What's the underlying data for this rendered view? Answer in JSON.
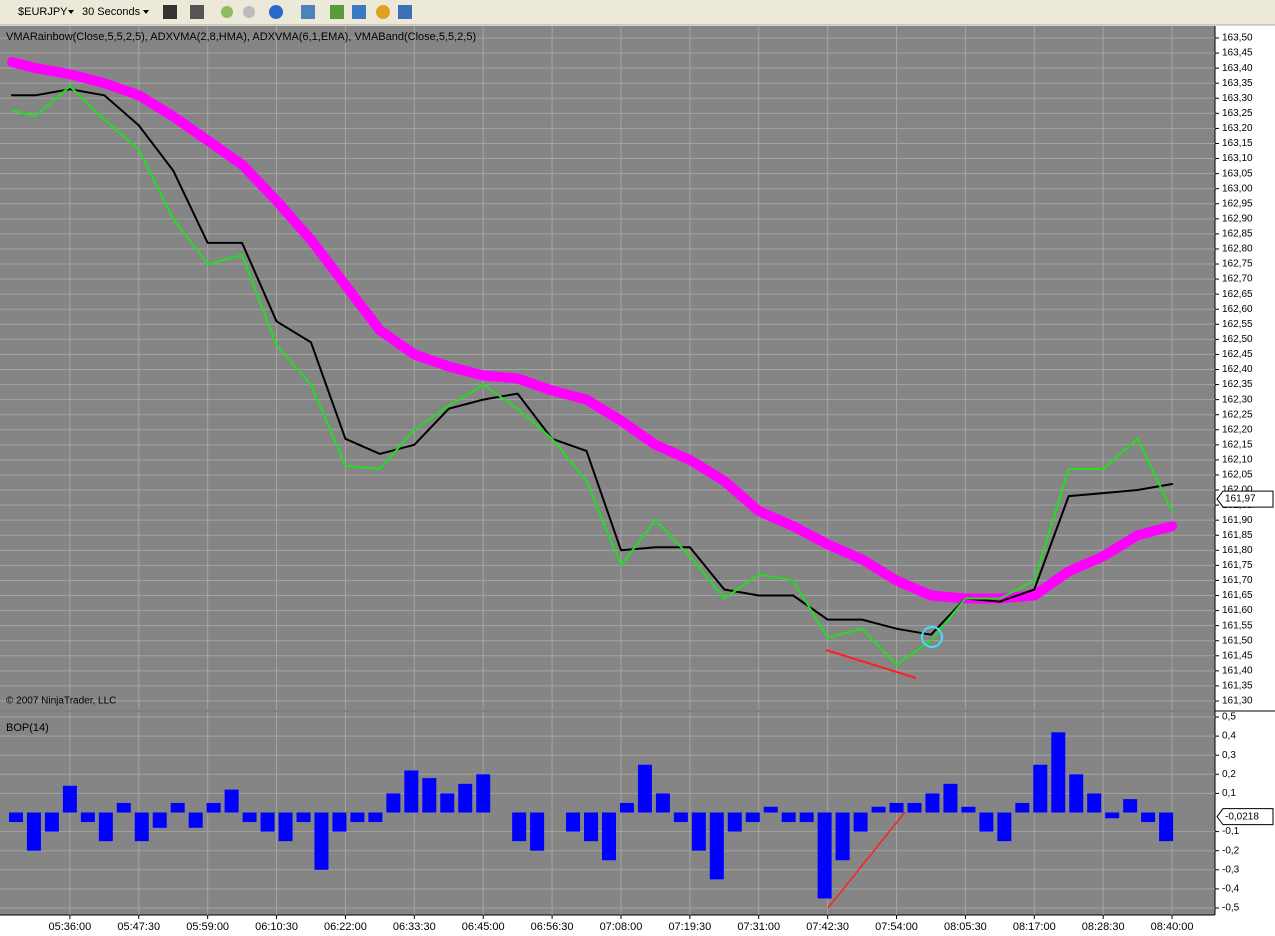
{
  "toolbar": {
    "instrument": "$EURJPY",
    "interval": "30 Seconds"
  },
  "chart_data": [
    {
      "type": "line",
      "subtitle": "VMARainbow(Close,5,5,2,5), ADXVMA(2,8,HMA), ADXVMA(6,1,EMA), VMABand(Close,5,5,2,5)",
      "annotation": "© 2007 NinjaTrader, LLC",
      "x": [
        "05:26:20",
        "05:30:15",
        "05:36:00",
        "05:41:45",
        "05:47:30",
        "05:53:15",
        "05:59:00",
        "06:04:45",
        "06:10:30",
        "06:16:15",
        "06:22:00",
        "06:27:45",
        "06:33:30",
        "06:39:15",
        "06:45:00",
        "06:50:45",
        "06:56:30",
        "07:02:15",
        "07:08:00",
        "07:13:45",
        "07:19:30",
        "07:25:15",
        "07:31:00",
        "07:36:45",
        "07:42:30",
        "07:48:15",
        "07:54:00",
        "07:59:45",
        "08:05:30",
        "08:11:15",
        "08:17:00",
        "08:22:45",
        "08:28:30",
        "08:34:15",
        "08:40:00"
      ],
      "series": [
        {
          "color": "#ff00ff",
          "width": 10,
          "values": [
            163.42,
            163.4,
            163.38,
            163.35,
            163.31,
            163.24,
            163.16,
            163.08,
            162.96,
            162.83,
            162.68,
            162.53,
            162.45,
            162.41,
            162.38,
            162.37,
            162.33,
            162.3,
            162.23,
            162.15,
            162.1,
            162.03,
            161.93,
            161.88,
            161.82,
            161.77,
            161.7,
            161.65,
            161.64,
            161.64,
            161.65,
            161.73,
            161.78,
            161.85,
            161.88
          ]
        },
        {
          "color": "#000000",
          "width": 2,
          "values": [
            163.31,
            163.31,
            163.33,
            163.31,
            163.21,
            163.06,
            162.82,
            162.82,
            162.56,
            162.49,
            162.17,
            162.12,
            162.15,
            162.27,
            162.3,
            162.32,
            162.17,
            162.13,
            161.8,
            161.81,
            161.81,
            161.67,
            161.65,
            161.65,
            161.57,
            161.57,
            161.54,
            161.52,
            161.64,
            161.63,
            161.67,
            161.98,
            161.99,
            162.0,
            162.02
          ]
        },
        {
          "color": "#22dd22",
          "width": 2,
          "values": [
            163.26,
            163.24,
            163.34,
            163.23,
            163.13,
            162.9,
            162.75,
            162.78,
            162.48,
            162.35,
            162.08,
            162.07,
            162.2,
            162.28,
            162.35,
            162.27,
            162.17,
            162.03,
            161.75,
            161.9,
            161.78,
            161.64,
            161.72,
            161.7,
            161.51,
            161.54,
            161.42,
            161.5,
            161.64,
            161.64,
            161.7,
            162.07,
            162.07,
            162.17,
            161.93
          ]
        }
      ],
      "last_value": {
        "value": 161.97,
        "label": "161,97"
      },
      "xlim": [
        "05:24:20",
        "08:47:10"
      ],
      "ylim": [
        161.3,
        163.5
      ],
      "yticks": [
        {
          "value": 163.5,
          "label": "163,50"
        },
        {
          "value": 163.45,
          "label": "163,45"
        },
        {
          "value": 163.4,
          "label": "163,40"
        },
        {
          "value": 163.35,
          "label": "163,35"
        },
        {
          "value": 163.3,
          "label": "163,30"
        },
        {
          "value": 163.25,
          "label": "163,25"
        },
        {
          "value": 163.2,
          "label": "163,20"
        },
        {
          "value": 163.15,
          "label": "163,15"
        },
        {
          "value": 163.1,
          "label": "163,10"
        },
        {
          "value": 163.05,
          "label": "163,05"
        },
        {
          "value": 163,
          "label": "163,00"
        },
        {
          "value": 162.95,
          "label": "162,95"
        },
        {
          "value": 162.9,
          "label": "162,90"
        },
        {
          "value": 162.85,
          "label": "162,85"
        },
        {
          "value": 162.8,
          "label": "162,80"
        },
        {
          "value": 162.75,
          "label": "162,75"
        },
        {
          "value": 162.7,
          "label": "162,70"
        },
        {
          "value": 162.65,
          "label": "162,65"
        },
        {
          "value": 162.6,
          "label": "162,60"
        },
        {
          "value": 162.55,
          "label": "162,55"
        },
        {
          "value": 162.5,
          "label": "162,50"
        },
        {
          "value": 162.45,
          "label": "162,45"
        },
        {
          "value": 162.4,
          "label": "162,40"
        },
        {
          "value": 162.35,
          "label": "162,35"
        },
        {
          "value": 162.3,
          "label": "162,30"
        },
        {
          "value": 162.25,
          "label": "162,25"
        },
        {
          "value": 162.2,
          "label": "162,20"
        },
        {
          "value": 162.15,
          "label": "162,15"
        },
        {
          "value": 162.1,
          "label": "162,10"
        },
        {
          "value": 162.05,
          "label": "162,05"
        },
        {
          "value": 162,
          "label": "162,00"
        },
        {
          "value": 161.95,
          "label": "161,95"
        },
        {
          "value": 161.9,
          "label": "161,90"
        },
        {
          "value": 161.85,
          "label": "161,85"
        },
        {
          "value": 161.8,
          "label": "161,80"
        },
        {
          "value": 161.75,
          "label": "161,75"
        },
        {
          "value": 161.7,
          "label": "161,70"
        },
        {
          "value": 161.65,
          "label": "161,65"
        },
        {
          "value": 161.6,
          "label": "161,60"
        },
        {
          "value": 161.55,
          "label": "161,55"
        },
        {
          "value": 161.5,
          "label": "161,50"
        },
        {
          "value": 161.45,
          "label": "161,45"
        },
        {
          "value": 161.4,
          "label": "161,40"
        },
        {
          "value": 161.35,
          "label": "161,35"
        },
        {
          "value": 161.3,
          "label": "161,30"
        }
      ],
      "grid": true
    },
    {
      "type": "bar",
      "title": "BOP(14)",
      "color": "#0000ff",
      "x": [
        "05:27:00",
        "05:30:00",
        "05:33:00",
        "05:36:00",
        "05:39:00",
        "05:42:00",
        "05:45:00",
        "05:48:00",
        "05:51:00",
        "05:54:00",
        "05:57:00",
        "06:00:00",
        "06:03:00",
        "06:06:00",
        "06:09:00",
        "06:12:00",
        "06:15:00",
        "06:18:00",
        "06:21:00",
        "06:24:00",
        "06:27:00",
        "06:30:00",
        "06:33:00",
        "06:36:00",
        "06:39:00",
        "06:42:00",
        "06:45:00",
        "06:48:00",
        "06:51:00",
        "06:54:00",
        "06:57:00",
        "07:00:00",
        "07:03:00",
        "07:06:00",
        "07:09:00",
        "07:12:00",
        "07:15:00",
        "07:18:00",
        "07:21:00",
        "07:24:00",
        "07:27:00",
        "07:30:00",
        "07:33:00",
        "07:36:00",
        "07:39:00",
        "07:42:00",
        "07:45:00",
        "07:48:00",
        "07:51:00",
        "07:54:00",
        "07:57:00",
        "08:00:00",
        "08:03:00",
        "08:06:00",
        "08:09:00",
        "08:12:00",
        "08:15:00",
        "08:18:00",
        "08:21:00",
        "08:24:00",
        "08:27:00",
        "08:30:00",
        "08:33:00",
        "08:36:00",
        "08:39:00"
      ],
      "values": [
        -0.05,
        -0.2,
        -0.1,
        0.14,
        -0.05,
        -0.15,
        0.05,
        -0.15,
        -0.08,
        0.05,
        -0.08,
        0.05,
        0.12,
        -0.05,
        -0.1,
        -0.15,
        -0.05,
        -0.3,
        -0.1,
        -0.05,
        -0.05,
        0.1,
        0.22,
        0.18,
        0.1,
        0.15,
        0.2,
        0,
        -0.15,
        -0.2,
        0,
        -0.1,
        -0.15,
        -0.25,
        0.05,
        0.25,
        0.1,
        -0.05,
        -0.2,
        -0.35,
        -0.1,
        -0.05,
        0.03,
        -0.05,
        -0.05,
        -0.45,
        -0.25,
        -0.1,
        0.03,
        0.05,
        0.05,
        0.1,
        0.15,
        0.03,
        -0.1,
        -0.15,
        0.05,
        0.25,
        0.42,
        0.2,
        0.1,
        -0.03,
        0.07,
        -0.05,
        -0.15
      ],
      "last_value": {
        "value": -0.0218,
        "label": "-0,0218"
      },
      "xlim": [
        "05:24:20",
        "08:47:10"
      ],
      "xticks": [
        "05:36:00",
        "05:47:30",
        "05:59:00",
        "06:10:30",
        "06:22:00",
        "06:33:30",
        "06:45:00",
        "06:56:30",
        "07:08:00",
        "07:19:30",
        "07:31:00",
        "07:42:30",
        "07:54:00",
        "08:05:30",
        "08:17:00",
        "08:28:30",
        "08:40:00"
      ],
      "ylim": [
        -0.5,
        0.5
      ],
      "yticks": [
        {
          "value": 0.5,
          "label": "0,5"
        },
        {
          "value": 0.4,
          "label": "0,4"
        },
        {
          "value": 0.3,
          "label": "0,3"
        },
        {
          "value": 0.2,
          "label": "0,2"
        },
        {
          "value": 0.1,
          "label": "0,1"
        },
        {
          "value": -0.1,
          "label": "-0,1"
        },
        {
          "value": -0.2,
          "label": "-0,2"
        },
        {
          "value": -0.3,
          "label": "-0,3"
        },
        {
          "value": -0.4,
          "label": "-0,4"
        },
        {
          "value": -0.5,
          "label": "-0,5"
        }
      ],
      "grid": true
    }
  ]
}
